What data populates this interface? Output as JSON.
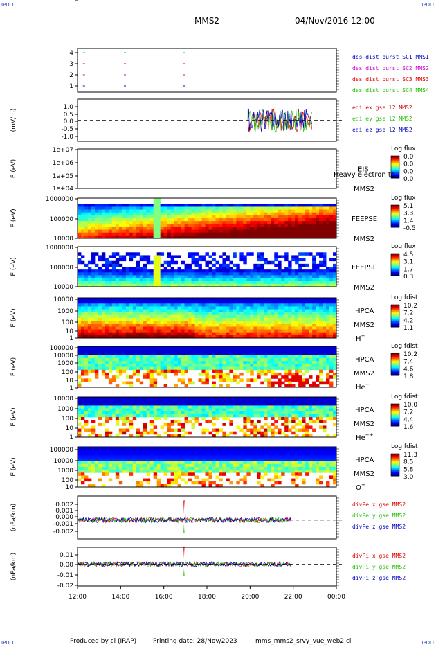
{
  "header": {
    "corner_tl": "IPDLI",
    "corner_tr": "IPDLI",
    "corner_bl": "IPDLI",
    "corner_br": "IPDLI",
    "spacecraft": "MMS2",
    "datetime": "04/Nov/2016 12:00"
  },
  "footer": {
    "produced_by": "Produced by cl (IRAP)",
    "printing_date": "Printing date: 28/Nov/2023",
    "filename": "mms_mms2_srvy_vue_web2.cl"
  },
  "colors": {
    "red": "#e00000",
    "green": "#22c000",
    "blue": "#0000c0",
    "magenta": "#d000d0",
    "axis": "#000000"
  },
  "chart_data": [
    {
      "type": "line",
      "id": "burst",
      "ylabel": "",
      "yticks": [
        "4",
        "3",
        "2",
        "1"
      ],
      "legend": [
        {
          "label": "des dist burst SC1 MMS1",
          "color": "blue"
        },
        {
          "label": "des dist burst SC2 MMS2",
          "color": "magenta"
        },
        {
          "label": "des dist burst SC3 MMS3",
          "color": "red"
        },
        {
          "label": "des dist burst SC4 MMS4",
          "color": "green"
        }
      ],
      "markers_time_hours": [
        12.25,
        14.15,
        16.9
      ]
    },
    {
      "type": "line",
      "id": "edi",
      "ylabel": "(mV/m)",
      "ylim": [
        -1.3,
        1.3
      ],
      "yticks": [
        "1.0",
        "0.5",
        "0.0",
        "-0.5",
        "-1.0"
      ],
      "legend": [
        {
          "label": "edi ex gse l2 MMS2",
          "color": "red"
        },
        {
          "label": "edi ey gse l2 MMS2",
          "color": "green"
        },
        {
          "label": "edi ez gse l2 MMS2",
          "color": "blue"
        }
      ],
      "data_range_hours": [
        19.9,
        22.9
      ],
      "amplitude": 0.9
    },
    {
      "type": "heatmap",
      "id": "eis",
      "ylabel": "E (eV)",
      "yticks": [
        "1e+07",
        "1e+06",
        "1e+05",
        "1e+04"
      ],
      "instrument": "EIS",
      "overlay": "Heavy electron to",
      "sc": "MMS2",
      "cb_title": "Log flux",
      "cb_ticks": [
        "0.0",
        "0.0",
        "0.0",
        "0.0"
      ]
    },
    {
      "type": "heatmap",
      "id": "feepse",
      "ylabel": "E (eV)",
      "yticks": [
        "1000000",
        "100000",
        "10000"
      ],
      "instrument": "FEEPSE",
      "sc": "MMS2",
      "cb_title": "Log flux",
      "cb_ticks": [
        "5.1",
        "3.3",
        "1.4",
        "-0.5"
      ]
    },
    {
      "type": "heatmap",
      "id": "feepsi",
      "ylabel": "E (eV)",
      "yticks": [
        "1000000",
        "100000",
        "10000"
      ],
      "instrument": "FEEPSI",
      "sc": "MMS2",
      "cb_title": "Log flux",
      "cb_ticks": [
        "4.5",
        "3.1",
        "1.7",
        "0.3"
      ]
    },
    {
      "type": "heatmap",
      "id": "hpca_h",
      "ylabel": "E (eV)",
      "yticks": [
        "10000",
        "1000",
        "100",
        "10",
        "1"
      ],
      "instrument": "HPCA",
      "sc": "MMS2",
      "species": "H",
      "species_sup": "+",
      "cb_title": "Log fdist",
      "cb_ticks": [
        "10.2",
        "7.2",
        "4.2",
        "1.1"
      ]
    },
    {
      "type": "heatmap",
      "id": "hpca_he1",
      "ylabel": "E (eV)",
      "yticks": [
        "100000",
        "10000",
        "1000",
        "100",
        "10",
        "1"
      ],
      "instrument": "HPCA",
      "sc": "MMS2",
      "species": "He",
      "species_sup": "+",
      "cb_title": "Log fdist",
      "cb_ticks": [
        "10.2",
        "7.4",
        "4.6",
        "1.8"
      ]
    },
    {
      "type": "heatmap",
      "id": "hpca_he2",
      "ylabel": "E (eV)",
      "yticks": [
        "10000",
        "1000",
        "100",
        "10",
        "1"
      ],
      "instrument": "HPCA",
      "sc": "MMS2",
      "species": "He",
      "species_sup": "++",
      "cb_title": "Log fdist",
      "cb_ticks": [
        "10.0",
        "7.2",
        "4.4",
        "1.6"
      ]
    },
    {
      "type": "heatmap",
      "id": "hpca_o",
      "ylabel": "E (eV)",
      "yticks": [
        "100000",
        "10000",
        "1000",
        "100",
        "10",
        "1"
      ],
      "instrument": "HPCA",
      "sc": "MMS2",
      "species": "O",
      "species_sup": "+",
      "cb_title": "Log fdist",
      "cb_ticks": [
        "11.3",
        "8.5",
        "5.8",
        "3.0"
      ]
    },
    {
      "type": "line",
      "id": "divpe",
      "ylabel": "(nPa/km)",
      "ylim": [
        -0.0025,
        0.0032
      ],
      "yticks": [
        "0.002",
        "0.001",
        "0.000",
        "-0.001",
        "-0.002"
      ],
      "legend": [
        {
          "label": "divPe x gse MMS2",
          "color": "red"
        },
        {
          "label": "divPe y gse MMS2",
          "color": "green"
        },
        {
          "label": "divPe z gse MMS2",
          "color": "blue"
        }
      ],
      "data_range_hours": [
        12.0,
        21.9
      ],
      "spike_hour": 16.95
    },
    {
      "type": "line",
      "id": "divpi",
      "ylabel": "(nPa/km)",
      "ylim": [
        -0.022,
        0.017
      ],
      "yticks": [
        "0.01",
        "0.00",
        "-0.01",
        "-0.02"
      ],
      "legend": [
        {
          "label": "divPi x gse MMS2",
          "color": "red"
        },
        {
          "label": "divPi y gse MMS2",
          "color": "green"
        },
        {
          "label": "divPi z gse MMS2",
          "color": "blue"
        }
      ],
      "data_range_hours": [
        12.0,
        21.9
      ],
      "spike_hour": 16.95
    }
  ],
  "x_axis": {
    "range_hours": [
      12,
      24
    ],
    "tick_labels": [
      "12:00",
      "14:00",
      "16:00",
      "18:00",
      "20:00",
      "22:00",
      "00:00"
    ]
  }
}
